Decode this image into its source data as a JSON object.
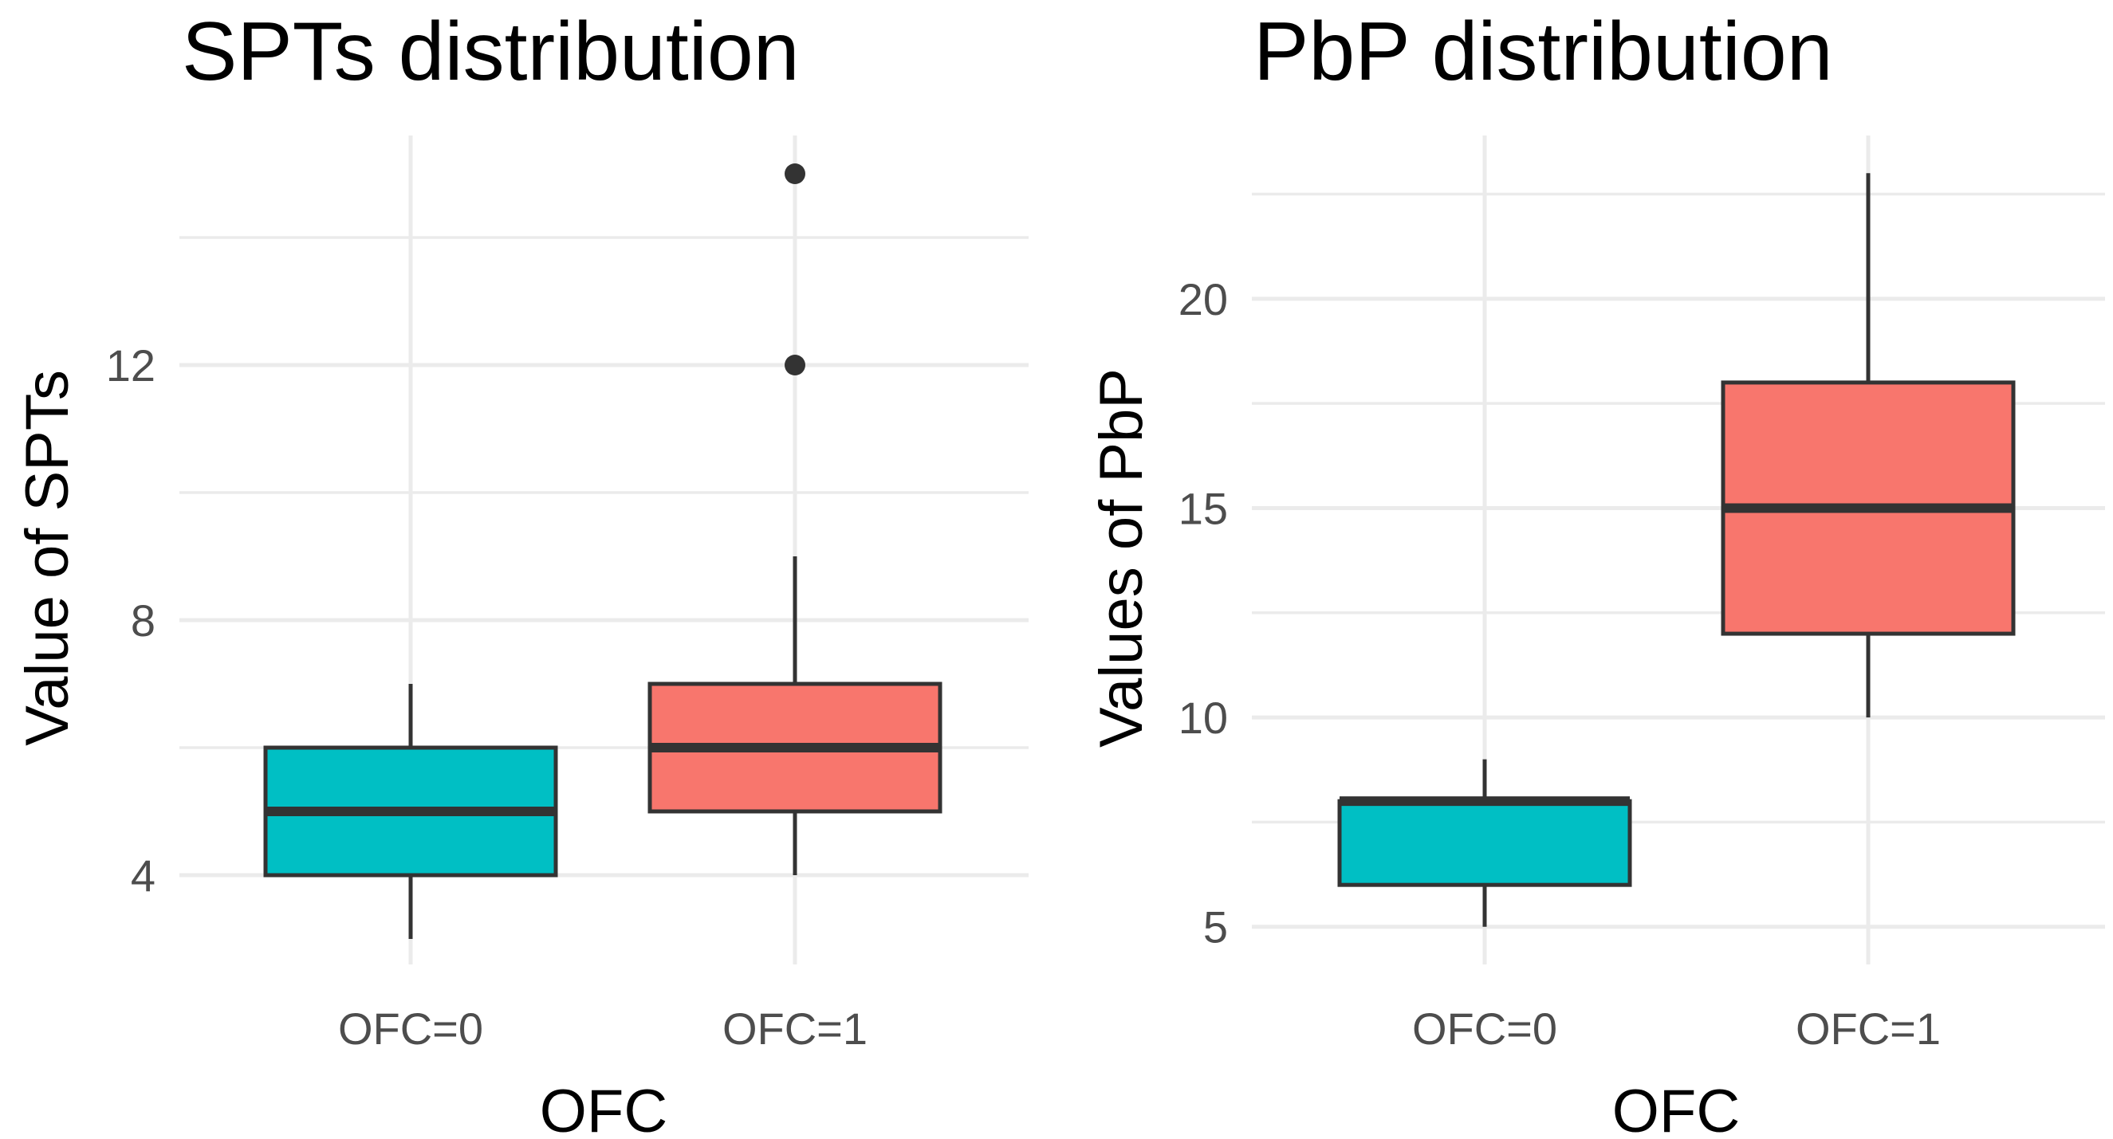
{
  "chart_data": [
    {
      "type": "box",
      "title": "SPTs distribution",
      "xlabel": "OFC",
      "ylabel": "Value of SPTs",
      "ylim": [
        2.6,
        15.6
      ],
      "y_ticks": [
        4,
        8,
        12
      ],
      "y_minor_ticks": [
        6,
        10,
        14
      ],
      "categories": [
        "OFC=0",
        "OFC=1"
      ],
      "boxes": [
        {
          "category": "OFC=0",
          "min": 3,
          "q1": 4,
          "median": 5,
          "q3": 6,
          "max": 7,
          "outliers": [],
          "color": "#00BFC4"
        },
        {
          "category": "OFC=1",
          "min": 4,
          "q1": 5,
          "median": 6,
          "q3": 7,
          "max": 9,
          "outliers": [
            12,
            15
          ],
          "color": "#F8766D"
        }
      ],
      "grid": true
    },
    {
      "type": "box",
      "title": "PbP distribution",
      "xlabel": "OFC",
      "ylabel": "Values of PbP",
      "ylim": [
        4.1,
        23.9
      ],
      "y_ticks": [
        5,
        10,
        15,
        20
      ],
      "y_minor_ticks": [
        7.5,
        12.5,
        17.5,
        22.5
      ],
      "categories": [
        "OFC=0",
        "OFC=1"
      ],
      "boxes": [
        {
          "category": "OFC=0",
          "min": 5,
          "q1": 6,
          "median": 8,
          "q3": 8,
          "max": 9,
          "outliers": [],
          "color": "#00BFC4"
        },
        {
          "category": "OFC=1",
          "min": 10,
          "q1": 12,
          "median": 15,
          "q3": 18,
          "max": 23,
          "outliers": [],
          "color": "#F8766D"
        }
      ],
      "grid": true
    }
  ]
}
